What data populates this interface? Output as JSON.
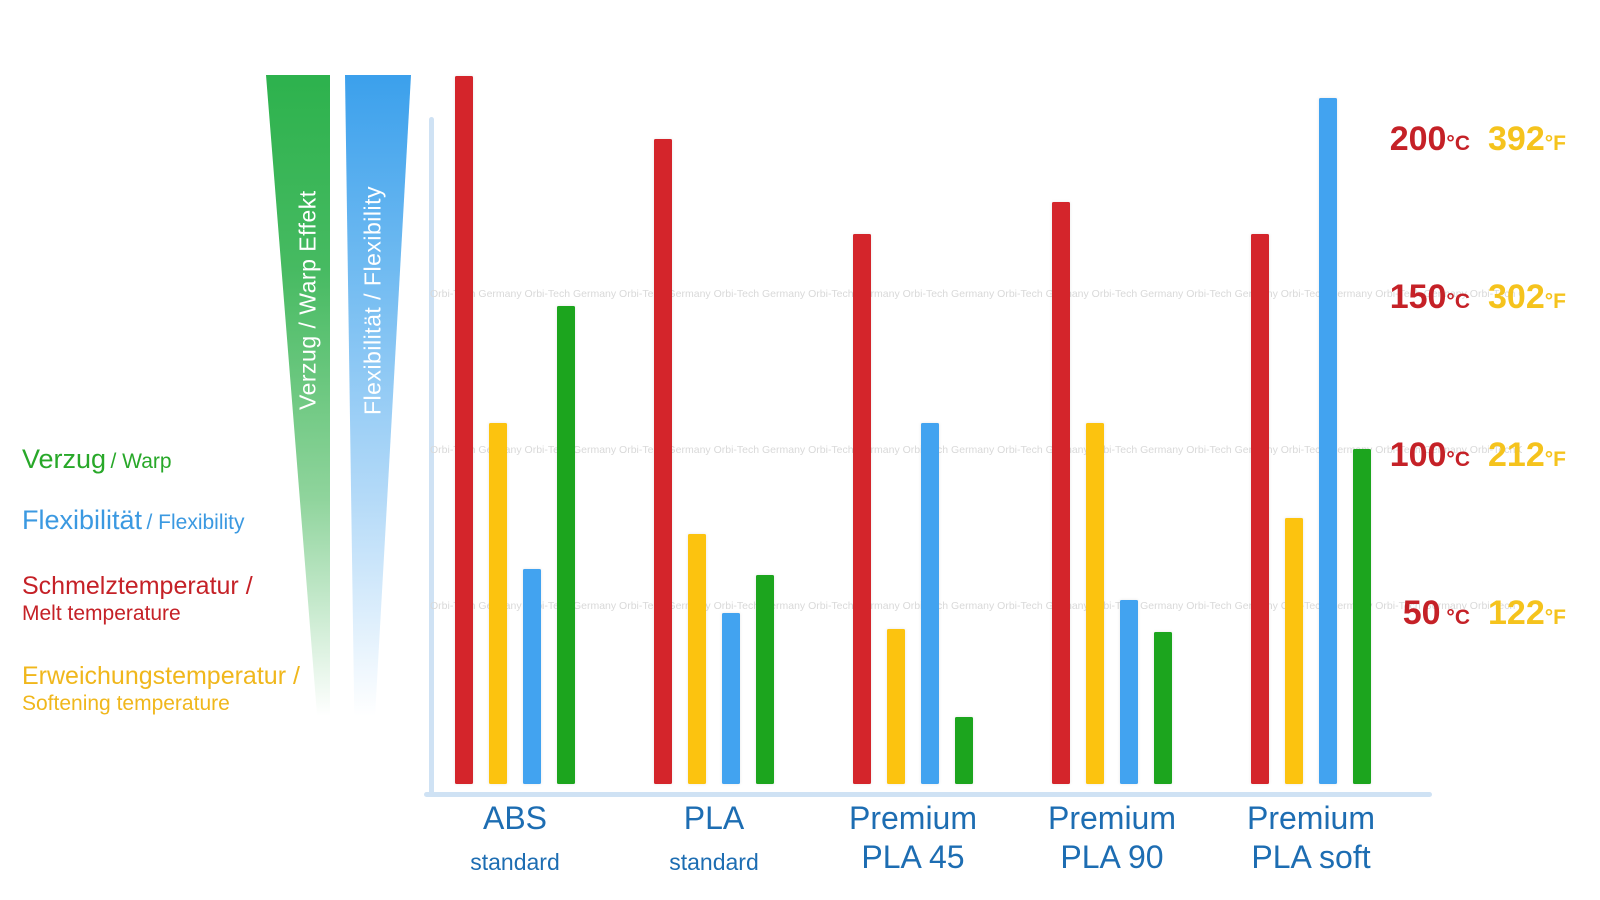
{
  "wedges": {
    "warp_label": "Verzug / Warp Effekt",
    "flex_label": "Flexibilität / Flexibility",
    "warp_color_top": "#2db24d",
    "flex_color_top": "#3ba0ec"
  },
  "legend": {
    "items": [
      {
        "de": "Verzug",
        "en": "/ Warp",
        "color": "#28a829"
      },
      {
        "de": "Flexibilität",
        "en": "/ Flexibility",
        "color": "#3b99e1"
      },
      {
        "de": "Schmelztemperatur /",
        "en": "Melt temperature",
        "color": "#c52127"
      },
      {
        "de": "Erweichungstemperatur /",
        "en": "Softening temperature",
        "color": "#f0b71c"
      }
    ]
  },
  "watermark": {
    "text": "Orbi-Tech Germany",
    "color": "#d9d9d9"
  },
  "y_axis": {
    "celsius_color": "#c52127",
    "fahrenheit_color": "#f5c31d",
    "ticks": [
      {
        "celsius": "200",
        "celsius_unit": "°C",
        "fahrenheit": "392",
        "fahrenheit_unit": "°F"
      },
      {
        "celsius": "150",
        "celsius_unit": "°C",
        "fahrenheit": "302",
        "fahrenheit_unit": "°F"
      },
      {
        "celsius": "100",
        "celsius_unit": "°C",
        "fahrenheit": "212",
        "fahrenheit_unit": "°F"
      },
      {
        "celsius": "50",
        "celsius_unit": " °C",
        "fahrenheit": "122",
        "fahrenheit_unit": "°F"
      }
    ]
  },
  "chart_data": {
    "type": "bar",
    "title": "",
    "categories": [
      {
        "label": "ABS",
        "sub": "standard",
        "sub_small": true
      },
      {
        "label": "PLA",
        "sub": "standard",
        "sub_small": true
      },
      {
        "label": "Premium",
        "sub": "PLA 45",
        "sub_small": false
      },
      {
        "label": "Premium",
        "sub": "PLA 90",
        "sub_small": false
      },
      {
        "label": "Premium",
        "sub": "PLA soft",
        "sub_small": false
      }
    ],
    "series": [
      {
        "key": "melt",
        "name": "Schmelztemperatur / Melt temperature",
        "unit": "°C",
        "color": "#d4252b",
        "values": [
          220,
          200,
          170,
          180,
          170
        ]
      },
      {
        "key": "softening",
        "name": "Erweichungstemperatur / Softening temperature",
        "unit": "°C",
        "color": "#fcc30f",
        "values": [
          110,
          75,
          45,
          110,
          80
        ]
      },
      {
        "key": "flexibility",
        "name": "Flexibilität / Flexibility",
        "unit": "relative",
        "color": "#42a3f0",
        "values": [
          64,
          50,
          110,
          54,
          213
        ]
      },
      {
        "key": "warp",
        "name": "Verzug / Warp Effekt",
        "unit": "relative",
        "color": "#1ca51e",
        "values": [
          147,
          62,
          17,
          44,
          102
        ]
      }
    ],
    "ylim": [
      0,
      225
    ],
    "y_ticks_celsius": [
      200,
      150,
      100,
      50
    ],
    "y_ticks_fahrenheit": [
      392,
      302,
      212,
      122
    ],
    "grid": false,
    "legend_position": "left",
    "note": "Flexibility (blue) and warp (green) bars are relative ratings drawn on the same pixel scale as the °C bars"
  }
}
